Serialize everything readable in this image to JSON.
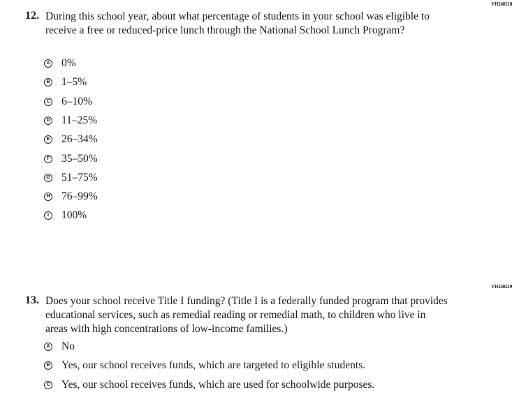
{
  "questions": [
    {
      "id": "VH240218",
      "number": "12.",
      "text": "During this school year, about what percentage of students in your school was eligible to receive a free or reduced-price lunch through the National School Lunch Program?",
      "options": [
        {
          "letter": "A",
          "label": "0%"
        },
        {
          "letter": "B",
          "label": "1–5%"
        },
        {
          "letter": "C",
          "label": "6–10%"
        },
        {
          "letter": "D",
          "label": "11–25%"
        },
        {
          "letter": "E",
          "label": "26–34%"
        },
        {
          "letter": "F",
          "label": "35–50%"
        },
        {
          "letter": "G",
          "label": "51–75%"
        },
        {
          "letter": "H",
          "label": "76–99%"
        },
        {
          "letter": "I",
          "label": "100%"
        }
      ]
    },
    {
      "id": "VH240219",
      "number": "13.",
      "text": "Does your school receive Title I funding? (Title I is a federally funded program that provides educational services, such as remedial reading or remedial math, to children who live in areas with high concentrations of low-income families.)",
      "options": [
        {
          "letter": "A",
          "label": "No"
        },
        {
          "letter": "B",
          "label": "Yes, our school receives funds, which are targeted to eligible students."
        },
        {
          "letter": "C",
          "label": "Yes, our school receives funds, which are used for schoolwide purposes."
        }
      ]
    }
  ]
}
